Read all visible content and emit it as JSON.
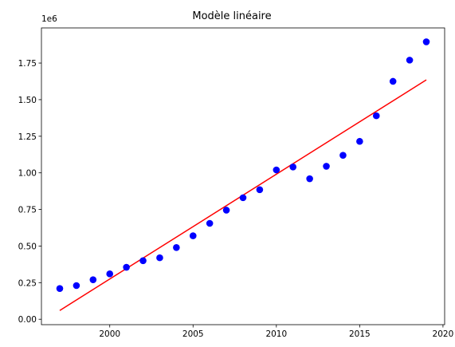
{
  "chart_data": {
    "type": "scatter",
    "title": "Modèle linéaire",
    "xlabel": "",
    "ylabel": "",
    "y_offset_label": "1e6",
    "xlim": [
      1995.9,
      2020.1
    ],
    "ylim": [
      -0.037,
      1.99
    ],
    "x_ticks": [
      2000,
      2005,
      2010,
      2015,
      2020
    ],
    "x_tick_labels": [
      "2000",
      "2005",
      "2010",
      "2015",
      "2020"
    ],
    "y_ticks": [
      0.0,
      0.25,
      0.5,
      0.75,
      1.0,
      1.25,
      1.5,
      1.75
    ],
    "y_tick_labels": [
      "0.00",
      "0.25",
      "0.50",
      "0.75",
      "1.00",
      "1.25",
      "1.50",
      "1.75"
    ],
    "grid": false,
    "series": [
      {
        "kind": "scatter",
        "color": "#0000ff",
        "x": [
          1997,
          1998,
          1999,
          2000,
          2001,
          2002,
          2003,
          2004,
          2005,
          2006,
          2007,
          2008,
          2009,
          2010,
          2011,
          2012,
          2013,
          2014,
          2015,
          2016,
          2017,
          2018,
          2019
        ],
        "y": [
          0.21,
          0.23,
          0.27,
          0.31,
          0.355,
          0.4,
          0.42,
          0.49,
          0.57,
          0.655,
          0.745,
          0.83,
          0.885,
          1.02,
          1.04,
          0.96,
          1.045,
          1.12,
          1.215,
          1.39,
          1.625,
          1.77,
          1.895
        ]
      },
      {
        "kind": "line",
        "color": "#ff0000",
        "x": [
          1997,
          2019
        ],
        "y": [
          0.06,
          1.635
        ]
      }
    ]
  }
}
